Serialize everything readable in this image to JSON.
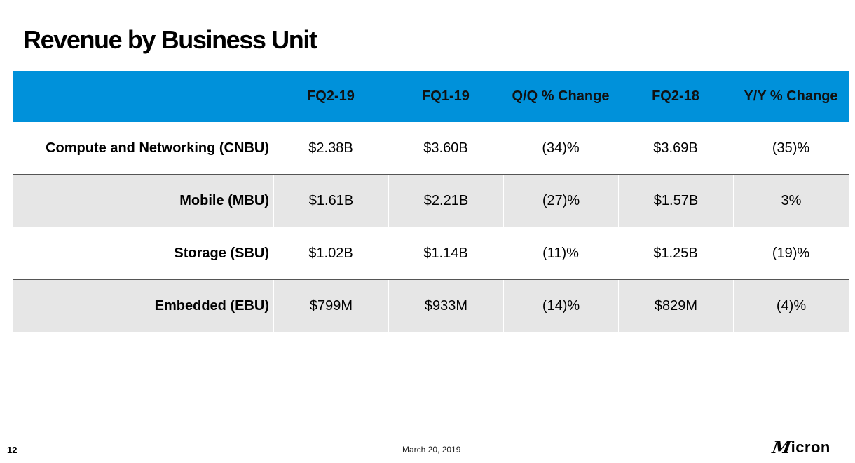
{
  "slide": {
    "title": "Revenue by Business Unit",
    "page_number": "12",
    "date": "March 20, 2019"
  },
  "logo": {
    "mark": "M",
    "text": "icron"
  },
  "table": {
    "header": [
      "",
      "FQ2-19",
      "FQ1-19",
      "Q/Q % Change",
      "FQ2-18",
      "Y/Y % Change"
    ],
    "rows": [
      [
        "Compute and Networking (CNBU)",
        "$2.38B",
        "$3.60B",
        "(34)%",
        "$3.69B",
        "(35)%"
      ],
      [
        "Mobile (MBU)",
        "$1.61B",
        "$2.21B",
        "(27)%",
        "$1.57B",
        "3%"
      ],
      [
        "Storage (SBU)",
        "$1.02B",
        "$1.14B",
        "(11)%",
        "$1.25B",
        "(19)%"
      ],
      [
        "Embedded (EBU)",
        "$799M",
        "$933M",
        "(14)%",
        "$829M",
        "(4)%"
      ]
    ]
  },
  "colors": {
    "header_blue": "#0091da",
    "row_shade": "#e6e6e6"
  }
}
